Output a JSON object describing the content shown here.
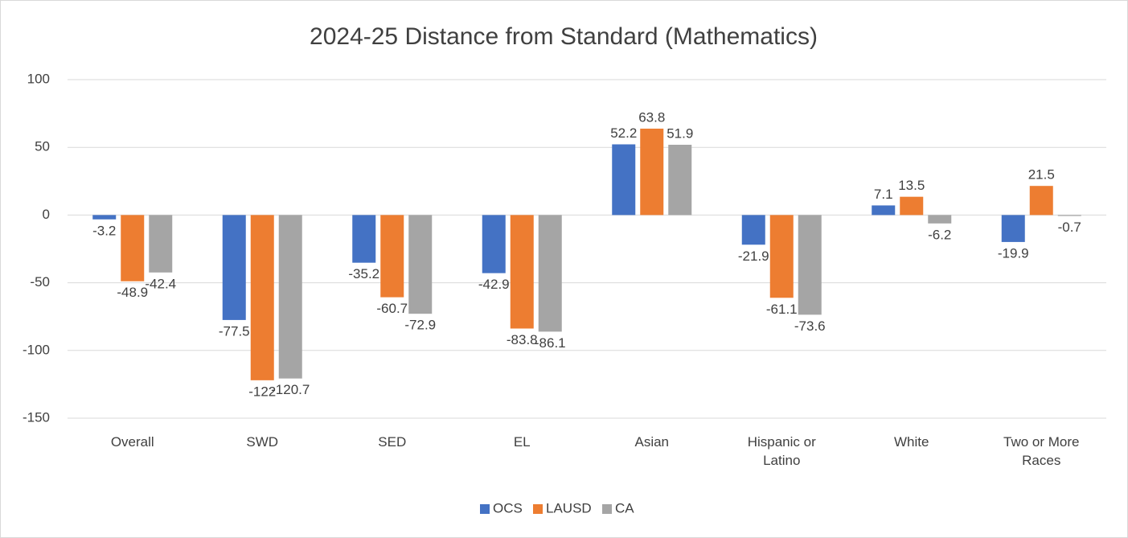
{
  "chart_data": {
    "type": "bar",
    "title": "2024-25 Distance from Standard (Mathematics)",
    "categories": [
      "Overall",
      "SWD",
      "SED",
      "EL",
      "Asian",
      "Hispanic or Latino",
      "White",
      "Two or More Races"
    ],
    "series": [
      {
        "name": "OCS",
        "color": "#4472c4",
        "values": [
          -3.2,
          -77.5,
          -35.2,
          -42.9,
          52.2,
          -21.9,
          7.1,
          -19.9
        ]
      },
      {
        "name": "LAUSD",
        "color": "#ed7d31",
        "values": [
          -48.9,
          -122,
          -60.7,
          -83.8,
          63.8,
          -61.1,
          13.5,
          21.5
        ]
      },
      {
        "name": "CA",
        "color": "#a5a5a5",
        "values": [
          -42.4,
          -120.7,
          -72.9,
          -86.1,
          51.9,
          -73.6,
          -6.2,
          -0.7
        ]
      }
    ],
    "ylim": [
      -150,
      100
    ],
    "yticks": [
      -150,
      -100,
      -50,
      0,
      50,
      100
    ],
    "grid": true,
    "legend": "bottom"
  }
}
